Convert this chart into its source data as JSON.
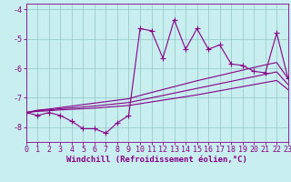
{
  "xlabel": "Windchill (Refroidissement éolien,°C)",
  "background_color": "#c8eef0",
  "line_color": "#880088",
  "grid_color": "#99cccc",
  "x_data": [
    0,
    1,
    2,
    3,
    4,
    5,
    6,
    7,
    8,
    9,
    10,
    11,
    12,
    13,
    14,
    15,
    16,
    17,
    18,
    19,
    20,
    21,
    22,
    23
  ],
  "y_main": [
    -7.5,
    -7.6,
    -7.5,
    -7.6,
    -7.8,
    -8.05,
    -8.05,
    -8.2,
    -7.85,
    -7.6,
    -4.65,
    -4.72,
    -5.65,
    -4.35,
    -5.35,
    -4.65,
    -5.35,
    -5.2,
    -5.85,
    -5.9,
    -6.1,
    -6.15,
    -4.8,
    -6.35
  ],
  "y_line1": [
    -7.5,
    -7.42,
    -7.38,
    -7.33,
    -7.28,
    -7.23,
    -7.18,
    -7.13,
    -7.08,
    -7.03,
    -6.92,
    -6.82,
    -6.72,
    -6.62,
    -6.52,
    -6.42,
    -6.33,
    -6.24,
    -6.15,
    -6.06,
    -5.97,
    -5.88,
    -5.8,
    -6.35
  ],
  "y_line2": [
    -7.5,
    -7.44,
    -7.41,
    -7.37,
    -7.34,
    -7.31,
    -7.28,
    -7.24,
    -7.2,
    -7.16,
    -7.08,
    -7.0,
    -6.92,
    -6.84,
    -6.76,
    -6.68,
    -6.6,
    -6.52,
    -6.44,
    -6.36,
    -6.28,
    -6.2,
    -6.12,
    -6.55
  ],
  "y_line3": [
    -7.5,
    -7.46,
    -7.44,
    -7.41,
    -7.39,
    -7.37,
    -7.35,
    -7.32,
    -7.29,
    -7.26,
    -7.2,
    -7.14,
    -7.08,
    -7.02,
    -6.96,
    -6.9,
    -6.83,
    -6.76,
    -6.69,
    -6.62,
    -6.55,
    -6.48,
    -6.41,
    -6.72
  ],
  "xlim": [
    0,
    23
  ],
  "ylim": [
    -8.5,
    -3.8
  ],
  "yticks": [
    -8,
    -7,
    -6,
    -5,
    -4
  ],
  "xticks": [
    0,
    1,
    2,
    3,
    4,
    5,
    6,
    7,
    8,
    9,
    10,
    11,
    12,
    13,
    14,
    15,
    16,
    17,
    18,
    19,
    20,
    21,
    22,
    23
  ],
  "xlabel_fontsize": 6.5,
  "tick_fontsize": 6.0,
  "markersize": 2.2,
  "linewidth": 0.8
}
